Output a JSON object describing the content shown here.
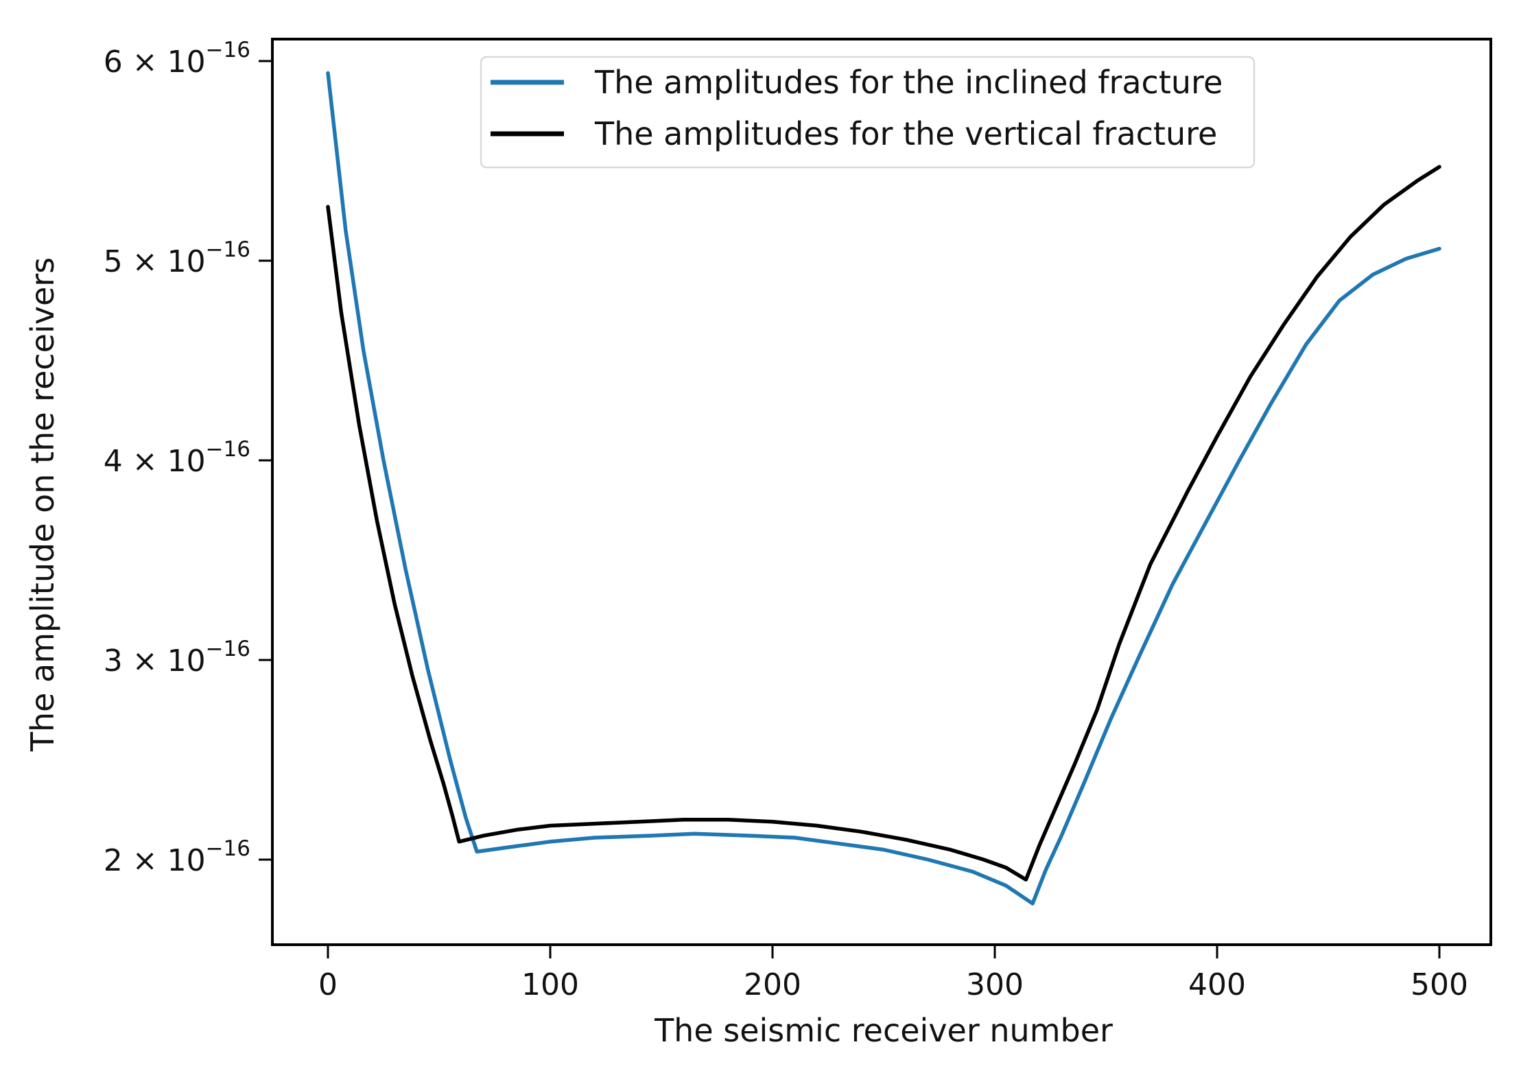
{
  "chart_data": {
    "type": "line",
    "title": "",
    "xlabel": "The seismic receiver number",
    "ylabel": "The amplitude on the receivers",
    "x_ticks": [
      0,
      100,
      200,
      300,
      400,
      500
    ],
    "x_axis_range": [
      -25,
      525
    ],
    "y_axis_scale": "linear, values in units of 1e-16",
    "y_axis_range_1e16": [
      1.57,
      6.11
    ],
    "y_ticks": [
      {
        "value": 6,
        "mantissa": "6 × 10",
        "exponent": "−16",
        "label": "6 × 10⁻¹⁶"
      },
      {
        "value": 5,
        "mantissa": "5 × 10",
        "exponent": "−16",
        "label": "5 × 10⁻¹⁶"
      },
      {
        "value": 4,
        "mantissa": "4 × 10",
        "exponent": "−16",
        "label": "4 × 10⁻¹⁶"
      },
      {
        "value": 3,
        "mantissa": "3 × 10",
        "exponent": "−16",
        "label": "3 × 10⁻¹⁶"
      },
      {
        "value": 2,
        "mantissa": "2 × 10",
        "exponent": "−16",
        "label": "2 × 10⁻¹⁶"
      }
    ],
    "grid": false,
    "legend": {
      "position": "upper left inside plot",
      "entries": [
        "The amplitudes for the inclined fracture",
        "The amplitudes for the vertical fracture"
      ]
    },
    "series": [
      {
        "name": "The amplitudes for the inclined fracture",
        "color": "#1f77b4",
        "points_unit": "x: receiver number, y: amplitude in 1e-16",
        "points": [
          [
            0,
            5.94
          ],
          [
            8,
            5.15
          ],
          [
            16,
            4.55
          ],
          [
            25,
            4.0
          ],
          [
            35,
            3.45
          ],
          [
            45,
            2.95
          ],
          [
            55,
            2.5
          ],
          [
            62,
            2.21
          ],
          [
            67,
            2.04
          ],
          [
            80,
            2.06
          ],
          [
            100,
            2.09
          ],
          [
            120,
            2.11
          ],
          [
            145,
            2.12
          ],
          [
            165,
            2.13
          ],
          [
            190,
            2.12
          ],
          [
            210,
            2.11
          ],
          [
            230,
            2.08
          ],
          [
            250,
            2.05
          ],
          [
            270,
            2.0
          ],
          [
            290,
            1.94
          ],
          [
            305,
            1.87
          ],
          [
            317,
            1.78
          ],
          [
            323,
            1.95
          ],
          [
            330,
            2.12
          ],
          [
            340,
            2.38
          ],
          [
            352,
            2.7
          ],
          [
            365,
            3.02
          ],
          [
            380,
            3.38
          ],
          [
            394,
            3.67
          ],
          [
            410,
            4.0
          ],
          [
            424,
            4.28
          ],
          [
            440,
            4.58
          ],
          [
            455,
            4.8
          ],
          [
            470,
            4.93
          ],
          [
            485,
            5.01
          ],
          [
            500,
            5.06
          ]
        ]
      },
      {
        "name": "The amplitudes for the vertical fracture",
        "color": "#000000",
        "points_unit": "x: receiver number, y: amplitude in 1e-16",
        "points": [
          [
            0,
            5.27
          ],
          [
            6,
            4.74
          ],
          [
            14,
            4.18
          ],
          [
            22,
            3.7
          ],
          [
            30,
            3.28
          ],
          [
            38,
            2.92
          ],
          [
            46,
            2.6
          ],
          [
            52,
            2.38
          ],
          [
            56,
            2.22
          ],
          [
            59,
            2.09
          ],
          [
            70,
            2.12
          ],
          [
            85,
            2.15
          ],
          [
            100,
            2.17
          ],
          [
            120,
            2.18
          ],
          [
            140,
            2.19
          ],
          [
            160,
            2.2
          ],
          [
            180,
            2.2
          ],
          [
            200,
            2.19
          ],
          [
            220,
            2.17
          ],
          [
            240,
            2.14
          ],
          [
            260,
            2.1
          ],
          [
            280,
            2.05
          ],
          [
            295,
            2.0
          ],
          [
            305,
            1.96
          ],
          [
            314,
            1.9
          ],
          [
            320,
            2.07
          ],
          [
            327,
            2.25
          ],
          [
            336,
            2.48
          ],
          [
            346,
            2.75
          ],
          [
            356,
            3.08
          ],
          [
            370,
            3.48
          ],
          [
            387,
            3.85
          ],
          [
            400,
            4.12
          ],
          [
            415,
            4.42
          ],
          [
            430,
            4.68
          ],
          [
            445,
            4.92
          ],
          [
            460,
            5.12
          ],
          [
            475,
            5.28
          ],
          [
            490,
            5.4
          ],
          [
            500,
            5.47
          ]
        ]
      }
    ]
  }
}
